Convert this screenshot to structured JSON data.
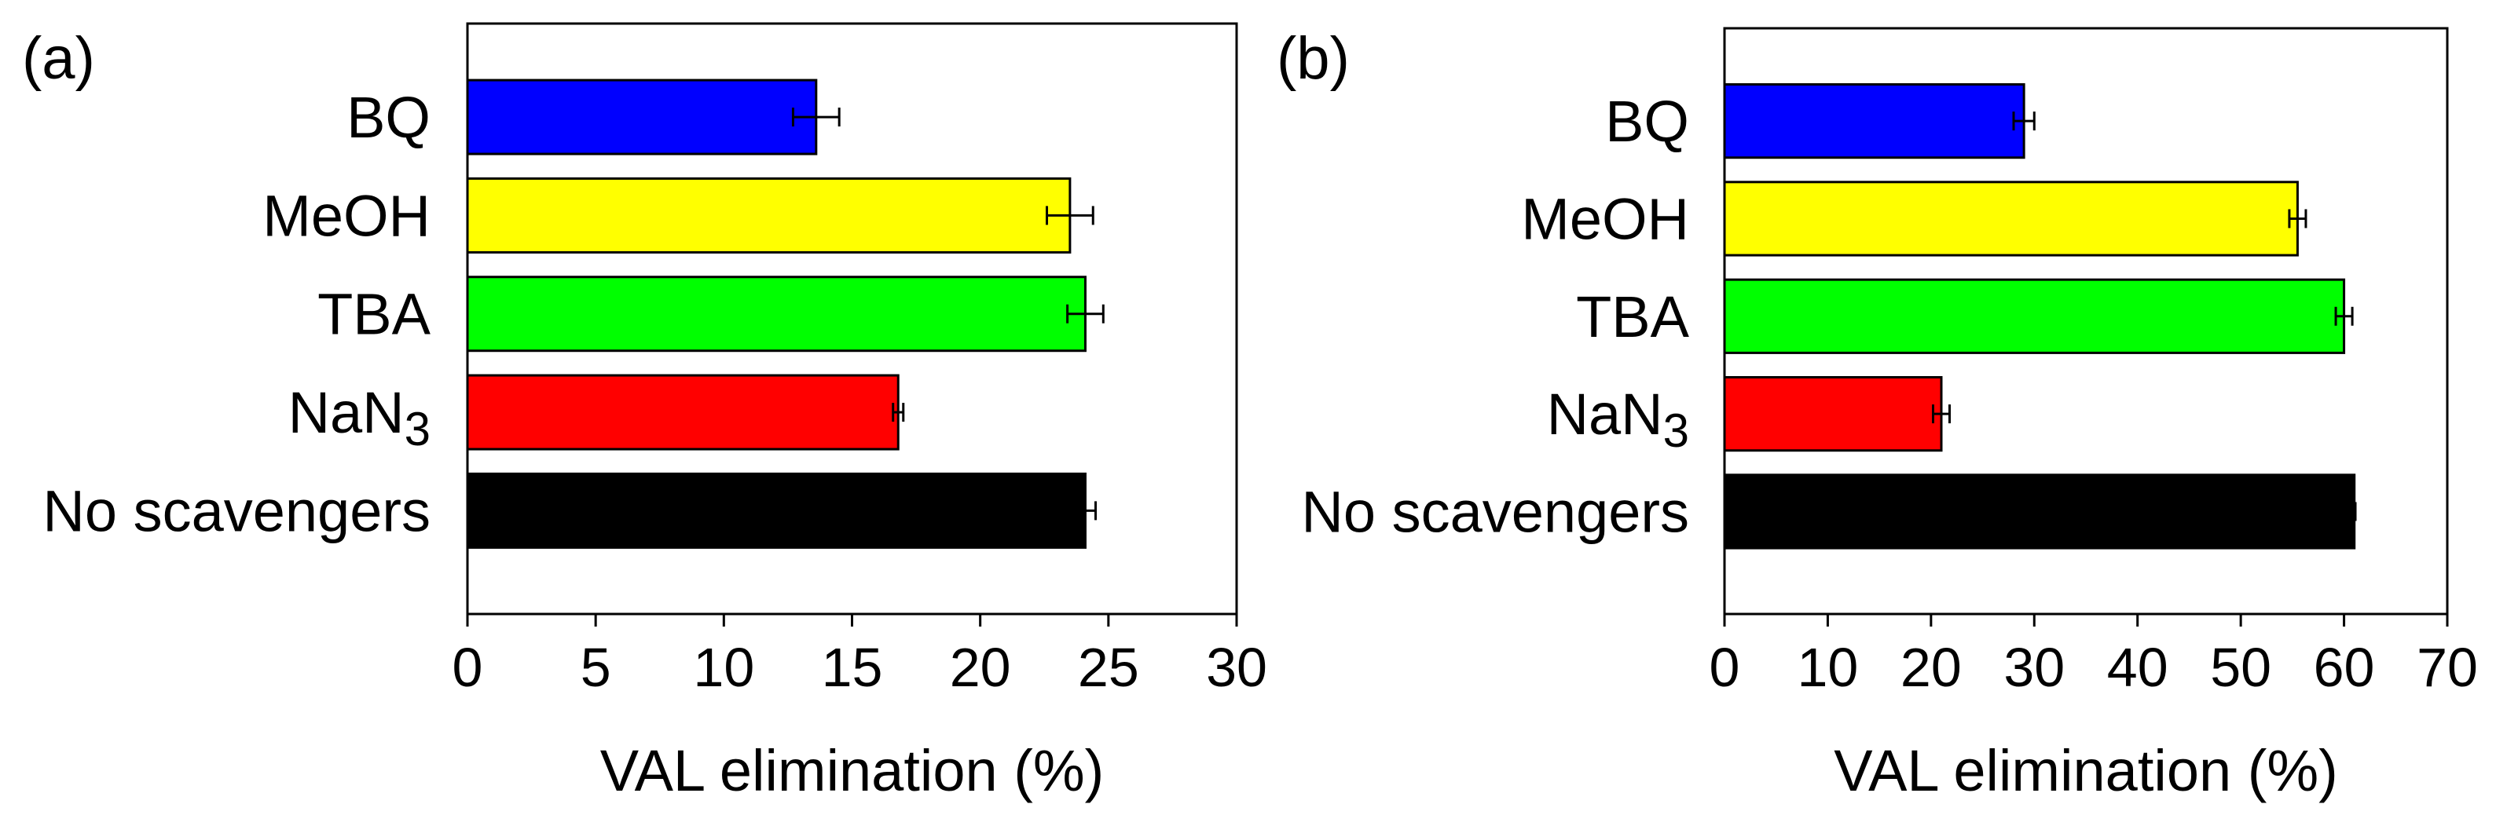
{
  "chart_data": [
    {
      "type": "bar",
      "orientation": "horizontal",
      "panel_label": "(a)",
      "categories": [
        "BQ",
        "MeOH",
        "TBA",
        "NaN3",
        "No scavengers"
      ],
      "category_labels": [
        {
          "base": "BQ",
          "sub": ""
        },
        {
          "base": "MeOH",
          "sub": ""
        },
        {
          "base": "TBA",
          "sub": ""
        },
        {
          "base": "NaN",
          "sub": "3"
        },
        {
          "base": "No scavengers",
          "sub": ""
        }
      ],
      "values": [
        13.6,
        23.5,
        24.1,
        16.8,
        24.1
      ],
      "errors": [
        0.9,
        0.9,
        0.7,
        0.2,
        0.4
      ],
      "colors": [
        "#0000ff",
        "#ffff00",
        "#00ff00",
        "#ff0000",
        "#000000"
      ],
      "xlabel": "VAL elimination (%)",
      "xlim": [
        0,
        30
      ],
      "xticks": [
        "0",
        "5",
        "10",
        "15",
        "20",
        "25",
        "30"
      ],
      "grid": false
    },
    {
      "type": "bar",
      "orientation": "horizontal",
      "panel_label": "(b)",
      "categories": [
        "BQ",
        "MeOH",
        "TBA",
        "NaN3",
        "No scavengers"
      ],
      "category_labels": [
        {
          "base": "BQ",
          "sub": ""
        },
        {
          "base": "MeOH",
          "sub": ""
        },
        {
          "base": "TBA",
          "sub": ""
        },
        {
          "base": "NaN",
          "sub": "3"
        },
        {
          "base": "No scavengers",
          "sub": ""
        }
      ],
      "values": [
        29,
        55.5,
        60,
        21,
        61
      ],
      "errors": [
        1.0,
        0.8,
        0.8,
        0.8,
        0.1
      ],
      "colors": [
        "#0000ff",
        "#ffff00",
        "#00ff00",
        "#ff0000",
        "#000000"
      ],
      "xlabel": "VAL elimination (%)",
      "xlim": [
        0,
        70
      ],
      "xticks": [
        "0",
        "10",
        "20",
        "30",
        "40",
        "50",
        "60",
        "70"
      ],
      "grid": false
    }
  ]
}
